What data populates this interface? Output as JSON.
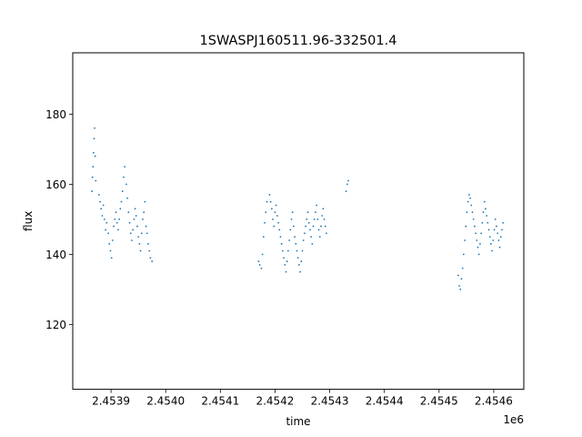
{
  "chart_data": {
    "type": "scatter",
    "title": "1SWASPJ160511.96-332501.4",
    "xlabel": "time",
    "ylabel": "flux",
    "x_offset_label": "1e6",
    "x_scale": 1000000,
    "xlim": [
      2453830,
      2454655
    ],
    "ylim": [
      101.5,
      197.5
    ],
    "xticks": [
      2453900,
      2454000,
      2454100,
      2454200,
      2454300,
      2454400,
      2454500,
      2454600
    ],
    "xtick_labels": [
      "2.4539",
      "2.4540",
      "2.4541",
      "2.4542",
      "2.4543",
      "2.4544",
      "2.4545",
      "2.4546"
    ],
    "yticks": [
      120,
      140,
      160,
      180
    ],
    "ytick_labels": [
      "120",
      "140",
      "160",
      "180"
    ],
    "grid": false,
    "legend": "none",
    "color": "#1f77b4",
    "series": [
      {
        "x": [
          2453865,
          2453866,
          2453867,
          2453868,
          2453869,
          2453870,
          2453871,
          2453872,
          2453878,
          2453880,
          2453882,
          2453884,
          2453886,
          2453888,
          2453890,
          2453892,
          2453895,
          2453897,
          2453899,
          2453901,
          2453903,
          2453905,
          2453907,
          2453909,
          2453911,
          2453913,
          2453915,
          2453917,
          2453919,
          2453921,
          2453923,
          2453925,
          2453928,
          2453930,
          2453932,
          2453934,
          2453936,
          2453938,
          2453940,
          2453942,
          2453944,
          2453946,
          2453948,
          2453950,
          2453952,
          2453954,
          2453956,
          2453958,
          2453960,
          2453962,
          2453964,
          2453966,
          2453968,
          2453970,
          2453972,
          2453975,
          2454170,
          2454172,
          2454175,
          2454177,
          2454179,
          2454181,
          2454183,
          2454185,
          2454190,
          2454192,
          2454194,
          2454196,
          2454198,
          2454200,
          2454202,
          2454204,
          2454206,
          2454208,
          2454210,
          2454212,
          2454214,
          2454216,
          2454218,
          2454220,
          2454222,
          2454224,
          2454226,
          2454228,
          2454230,
          2454232,
          2454234,
          2454236,
          2454238,
          2454240,
          2454242,
          2454244,
          2454246,
          2454248,
          2454250,
          2454252,
          2454254,
          2454256,
          2454258,
          2454260,
          2454262,
          2454264,
          2454266,
          2454268,
          2454270,
          2454272,
          2454274,
          2454276,
          2454278,
          2454280,
          2454282,
          2454284,
          2454286,
          2454288,
          2454290,
          2454292,
          2454294,
          2454330,
          2454332,
          2454334,
          2454535,
          2454537,
          2454539,
          2454541,
          2454543,
          2454545,
          2454547,
          2454549,
          2454551,
          2454553,
          2454555,
          2454557,
          2454559,
          2454561,
          2454563,
          2454565,
          2454567,
          2454569,
          2454571,
          2454573,
          2454575,
          2454577,
          2454579,
          2454581,
          2454583,
          2454585,
          2454587,
          2454589,
          2454591,
          2454593,
          2454595,
          2454597,
          2454599,
          2454601,
          2454603,
          2454605,
          2454607,
          2454609,
          2454611,
          2454613,
          2454615,
          2454617
        ],
        "y": [
          158,
          162,
          165,
          169,
          173,
          176,
          168,
          161,
          157,
          155,
          153,
          151,
          154,
          150,
          147,
          149,
          146,
          143,
          141,
          139,
          144,
          148,
          150,
          152,
          149,
          147,
          150,
          153,
          155,
          158,
          162,
          165,
          160,
          156,
          152,
          149,
          146,
          144,
          147,
          150,
          153,
          151,
          148,
          145,
          143,
          141,
          146,
          150,
          152,
          155,
          148,
          146,
          143,
          141,
          139,
          138,
          138,
          137,
          136,
          140,
          145,
          149,
          152,
          155,
          157,
          155,
          153,
          150,
          148,
          152,
          154,
          151,
          149,
          147,
          145,
          143,
          141,
          139,
          137,
          135,
          138,
          141,
          144,
          147,
          150,
          152,
          148,
          145,
          143,
          141,
          139,
          137,
          135,
          138,
          141,
          144,
          146,
          148,
          150,
          152,
          149,
          147,
          145,
          143,
          148,
          150,
          152,
          154,
          150,
          147,
          145,
          148,
          151,
          153,
          150,
          148,
          146,
          158,
          160,
          161,
          134,
          131,
          130,
          133,
          136,
          140,
          144,
          148,
          152,
          155,
          157,
          156,
          154,
          152,
          150,
          148,
          146,
          144,
          142,
          140,
          143,
          146,
          149,
          152,
          155,
          153,
          151,
          149,
          147,
          145,
          143,
          141,
          144,
          147,
          150,
          148,
          146,
          144,
          142,
          145,
          147,
          149
        ]
      }
    ]
  }
}
